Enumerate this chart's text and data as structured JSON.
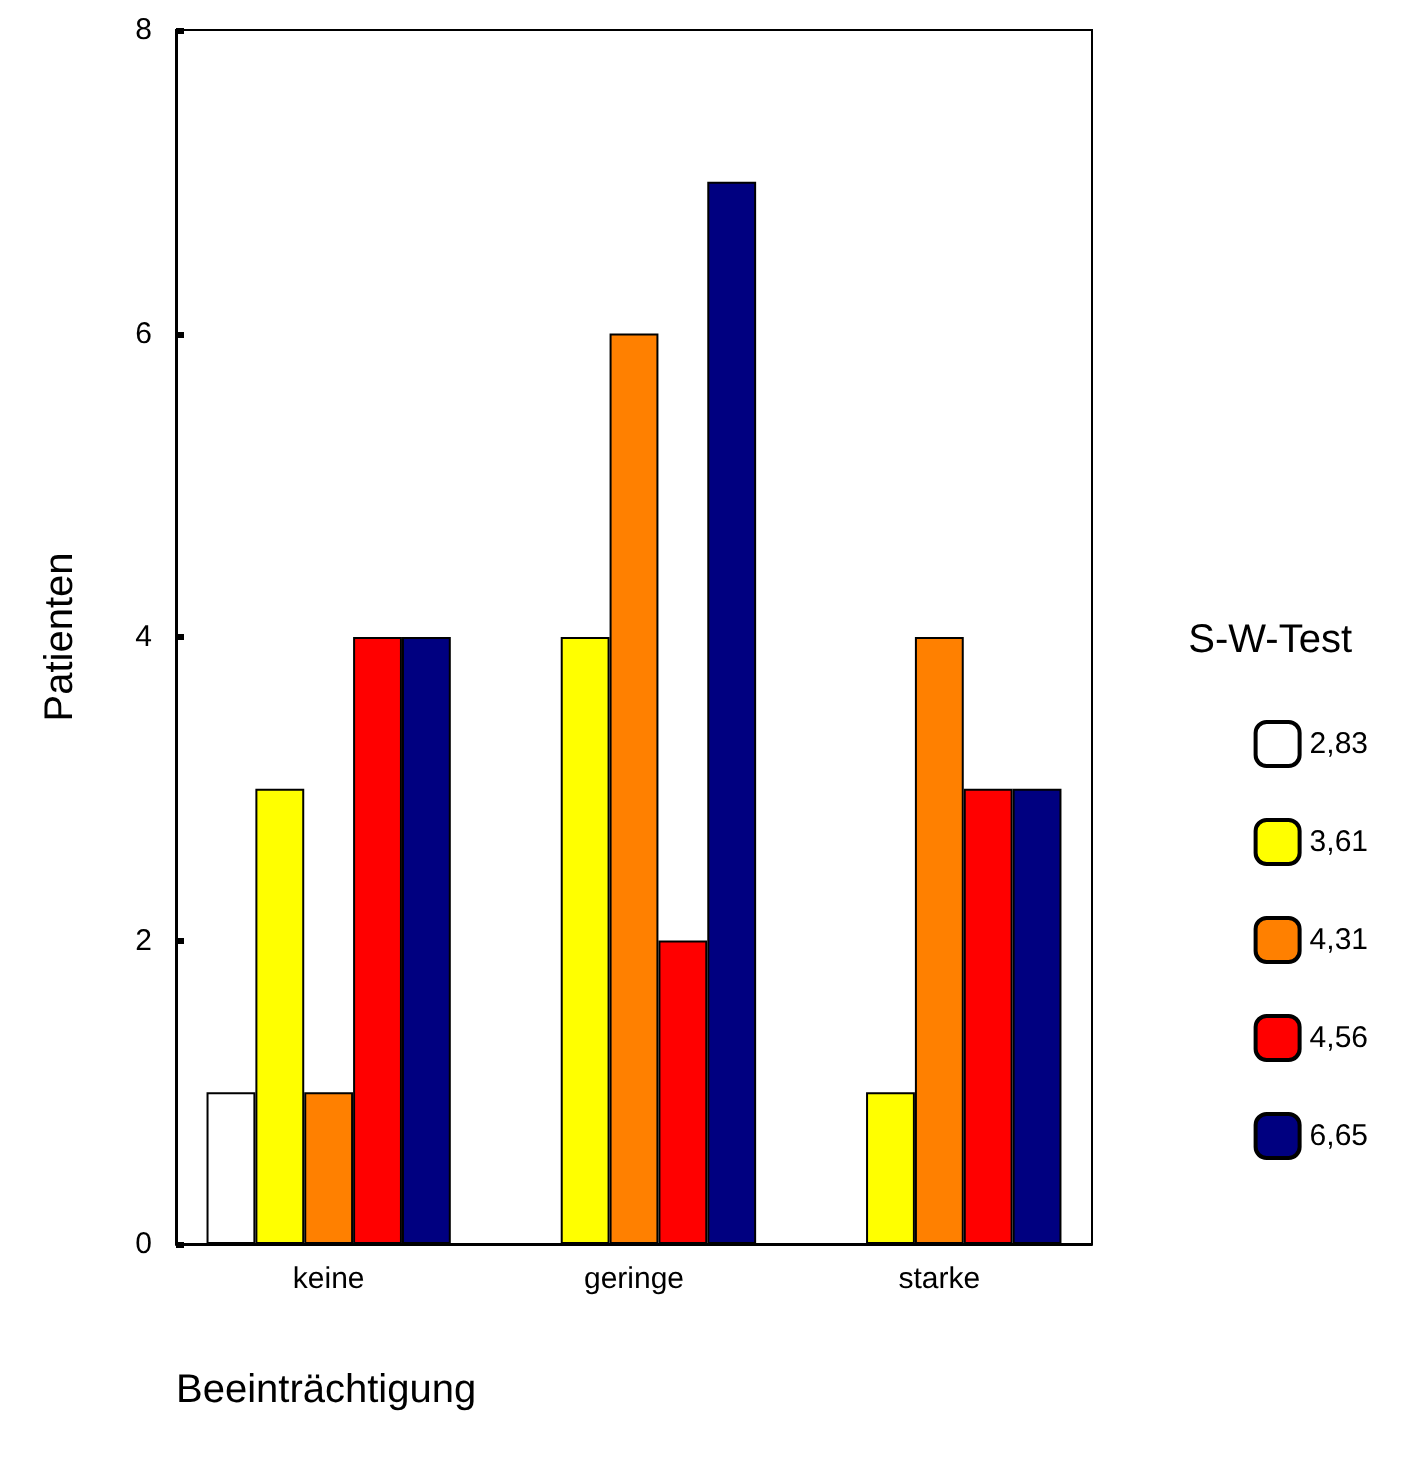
{
  "chart_data": {
    "type": "bar",
    "xlabel": "Beeinträchtigung",
    "ylabel": "Patienten",
    "legend_title": "S-W-Test",
    "categories": [
      "keine",
      "geringe",
      "starke"
    ],
    "series": [
      {
        "name": "2,83",
        "color": "#ffffff",
        "values": [
          1,
          0,
          0
        ]
      },
      {
        "name": "3,61",
        "color": "#ffff00",
        "values": [
          3,
          4,
          1
        ]
      },
      {
        "name": "4,31",
        "color": "#ff8000",
        "values": [
          1,
          6,
          4
        ]
      },
      {
        "name": "4,56",
        "color": "#ff0000",
        "values": [
          4,
          2,
          3
        ]
      },
      {
        "name": "6,65",
        "color": "#000080",
        "values": [
          4,
          7,
          3
        ]
      }
    ],
    "ylim": [
      0,
      8
    ],
    "yticks": [
      0,
      2,
      4,
      6,
      8
    ],
    "grid": false,
    "legend": "right"
  }
}
